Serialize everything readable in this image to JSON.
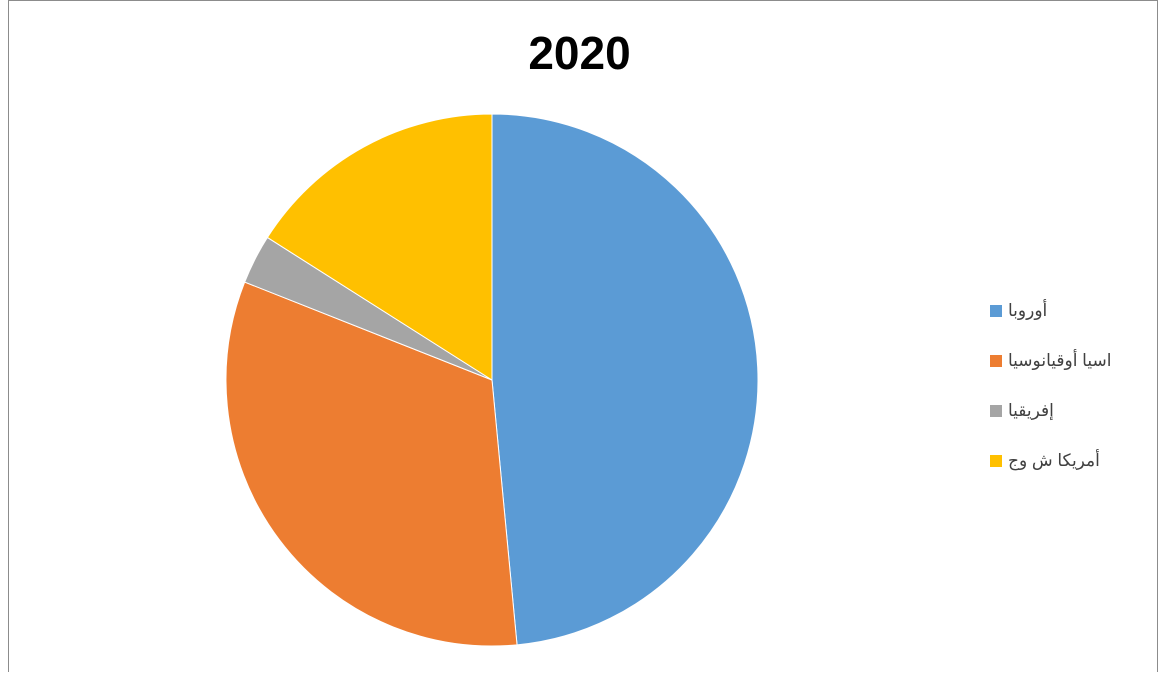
{
  "chart_data": {
    "type": "pie",
    "title": "2020",
    "categories": [
      "أوروبا",
      "اسيا أوقيانوسيا",
      "إفريقيا",
      "أمريكا ش وج"
    ],
    "values": [
      48.5,
      32.5,
      3.0,
      16.0
    ],
    "colors": [
      "#5b9bd5",
      "#ed7d31",
      "#a5a5a5",
      "#ffc000"
    ],
    "start_angle_deg": 0,
    "direction": "clockwise",
    "legend_position": "right"
  }
}
